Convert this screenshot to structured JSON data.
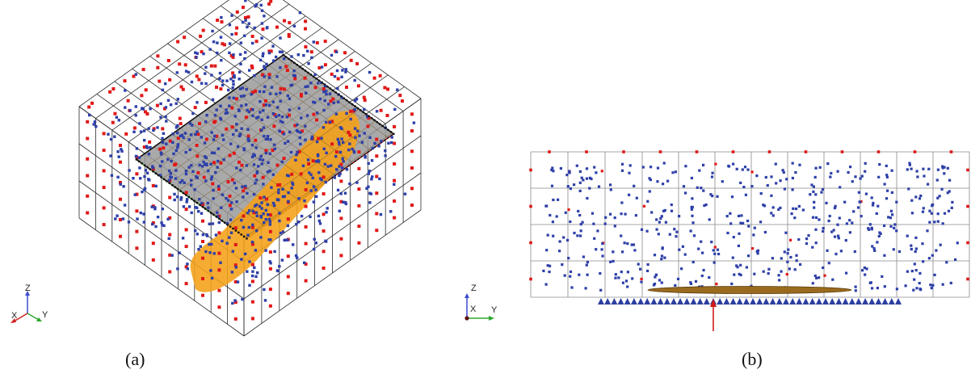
{
  "captions": {
    "a": "(a)",
    "b": "(b)"
  },
  "triad_a": {
    "z": "Z",
    "x": "X",
    "y": "Y"
  },
  "triad_b": {
    "z": "Z",
    "x": "X",
    "y": "Y"
  },
  "colors": {
    "grid": "#2b2b2b",
    "surface_node": "#e01818",
    "interior_node": "#2d3fa8",
    "crack_region": "#f5a017",
    "shell_plate": "#9a9a9a",
    "support": "#2c3fa0",
    "load_arrow": "#d01a1a",
    "crack_ellipse": "#9a6b1e",
    "axis_z": "#3b4bd0",
    "axis_x": "#d42020",
    "axis_y": "#2ea82e"
  },
  "icons": {
    "support": "triangle-support-icon",
    "load": "load-arrow-icon",
    "triad": "coordinate-axes-icon"
  }
}
